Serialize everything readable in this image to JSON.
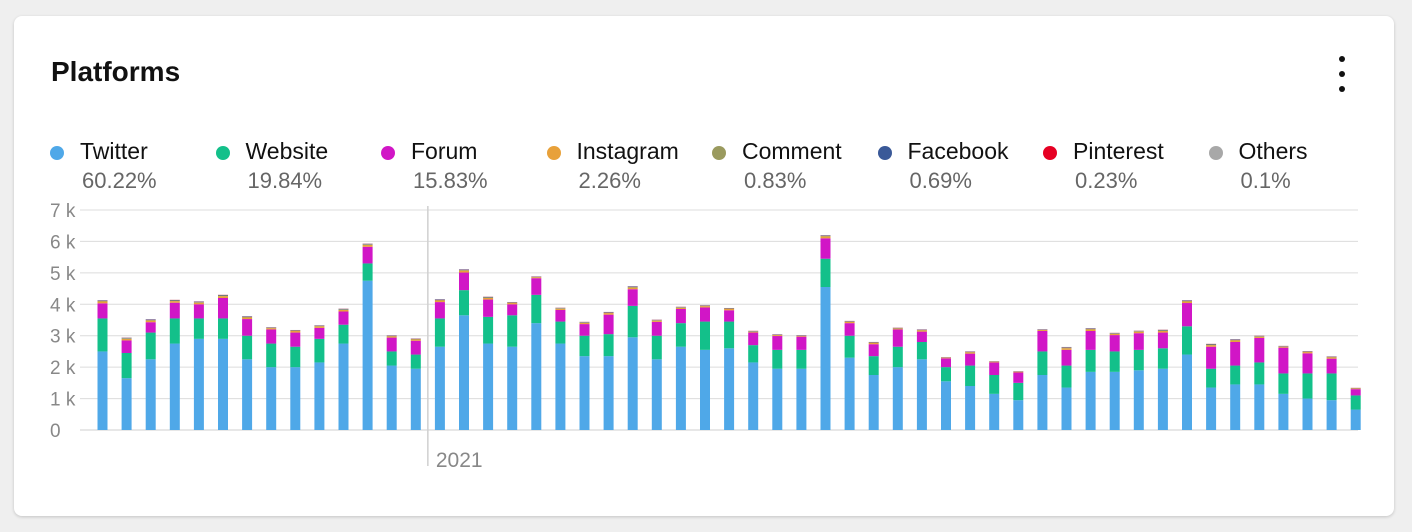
{
  "card": {
    "title": "Platforms",
    "menu_icon": "more-vertical-icon"
  },
  "chart_data": {
    "type": "bar",
    "stacked": true,
    "title": "Platforms",
    "xlabel": "",
    "ylabel": "",
    "ylim": [
      0,
      7000
    ],
    "yticks": [
      {
        "value": 0,
        "label": "0"
      },
      {
        "value": 1000,
        "label": "1  k"
      },
      {
        "value": 2000,
        "label": "2  k"
      },
      {
        "value": 3000,
        "label": "3  k"
      },
      {
        "value": 4000,
        "label": "4  k"
      },
      {
        "value": 5000,
        "label": "5  k"
      },
      {
        "value": 6000,
        "label": "6  k"
      },
      {
        "value": 7000,
        "label": "7  k"
      }
    ],
    "x_marker": {
      "label": "2021",
      "index": 13.5
    },
    "grid": true,
    "legend_position": "top",
    "series": [
      {
        "name": "Twitter",
        "share": "60.22%",
        "color": "#4fa8e8",
        "values": [
          2500,
          1650,
          2250,
          2750,
          2900,
          2900,
          2250,
          2000,
          2000,
          2150,
          2750,
          4750,
          2050,
          1950,
          2650,
          3650,
          2750,
          2650,
          3400,
          2750,
          2350,
          2350,
          2950,
          2250,
          2650,
          2550,
          2600,
          2150,
          1950,
          1950,
          4550,
          2300,
          1750,
          2000,
          2250,
          1550,
          1400,
          1150,
          950,
          1750,
          1350,
          1850,
          1850,
          1900,
          1950,
          2400,
          1350,
          1450,
          1450,
          1150,
          1000,
          950,
          650
        ]
      },
      {
        "name": "Website",
        "share": "19.84%",
        "color": "#13c08a",
        "values": [
          1050,
          800,
          850,
          800,
          650,
          650,
          750,
          750,
          650,
          750,
          600,
          550,
          450,
          450,
          900,
          800,
          850,
          1000,
          900,
          700,
          650,
          700,
          1000,
          750,
          750,
          900,
          850,
          550,
          600,
          600,
          900,
          700,
          600,
          650,
          550,
          450,
          650,
          600,
          550,
          750,
          700,
          700,
          650,
          650,
          650,
          900,
          600,
          600,
          700,
          650,
          800,
          850,
          450
        ]
      },
      {
        "name": "Forum",
        "share": "15.83%",
        "color": "#d116c6",
        "values": [
          480,
          400,
          330,
          500,
          450,
          650,
          530,
          450,
          450,
          350,
          420,
          530,
          440,
          440,
          520,
          560,
          550,
          350,
          530,
          370,
          370,
          620,
          530,
          440,
          450,
          450,
          360,
          400,
          440,
          420,
          650,
          400,
          380,
          550,
          330,
          280,
          380,
          400,
          330,
          650,
          500,
          600,
          520,
          530,
          500,
          740,
          700,
          750,
          780,
          820,
          640,
          470,
          200
        ]
      },
      {
        "name": "Instagram",
        "share": "2.26%",
        "color": "#e8a13a",
        "values": [
          60,
          50,
          50,
          50,
          50,
          60,
          50,
          40,
          50,
          50,
          50,
          60,
          40,
          40,
          50,
          60,
          50,
          40,
          30,
          40,
          40,
          50,
          50,
          40,
          40,
          40,
          40,
          30,
          30,
          20,
          60,
          40,
          40,
          30,
          40,
          20,
          40,
          20,
          20,
          30,
          50,
          50,
          40,
          50,
          50,
          50,
          50,
          50,
          40,
          30,
          40,
          40,
          20
        ]
      },
      {
        "name": "Comment",
        "share": "0.83%",
        "color": "#9a9a5e",
        "values": [
          20,
          20,
          20,
          20,
          20,
          20,
          20,
          15,
          15,
          15,
          20,
          20,
          15,
          15,
          20,
          20,
          20,
          15,
          10,
          15,
          15,
          15,
          20,
          15,
          15,
          15,
          15,
          10,
          10,
          10,
          20,
          15,
          15,
          10,
          15,
          10,
          15,
          10,
          10,
          10,
          20,
          20,
          15,
          15,
          20,
          20,
          20,
          20,
          15,
          10,
          15,
          15,
          10
        ]
      },
      {
        "name": "Facebook",
        "share": "0.69%",
        "color": "#3a5998",
        "values": [
          15,
          15,
          15,
          15,
          15,
          15,
          15,
          10,
          10,
          10,
          15,
          15,
          10,
          10,
          15,
          15,
          15,
          10,
          10,
          10,
          10,
          15,
          15,
          10,
          10,
          10,
          10,
          10,
          10,
          10,
          15,
          10,
          10,
          10,
          10,
          5,
          10,
          5,
          5,
          10,
          15,
          15,
          10,
          10,
          15,
          15,
          15,
          15,
          10,
          10,
          10,
          10,
          5
        ]
      },
      {
        "name": "Pinterest",
        "share": "0.23%",
        "color": "#e60023",
        "values": [
          5,
          5,
          5,
          5,
          5,
          5,
          5,
          5,
          5,
          5,
          5,
          5,
          5,
          5,
          5,
          5,
          5,
          5,
          5,
          5,
          5,
          5,
          5,
          5,
          5,
          5,
          5,
          5,
          5,
          5,
          5,
          5,
          5,
          5,
          5,
          5,
          5,
          5,
          5,
          5,
          5,
          5,
          5,
          5,
          5,
          5,
          5,
          5,
          5,
          5,
          5,
          5,
          5
        ]
      },
      {
        "name": "Others",
        "share": "0.1%",
        "color": "#a8a8a8",
        "values": [
          3,
          3,
          3,
          3,
          3,
          3,
          3,
          3,
          3,
          3,
          3,
          3,
          3,
          3,
          3,
          3,
          3,
          3,
          3,
          3,
          3,
          3,
          3,
          3,
          3,
          3,
          3,
          3,
          3,
          3,
          3,
          3,
          3,
          3,
          3,
          3,
          3,
          3,
          3,
          3,
          3,
          3,
          3,
          3,
          3,
          3,
          3,
          3,
          3,
          3,
          3,
          3,
          3
        ]
      }
    ]
  }
}
